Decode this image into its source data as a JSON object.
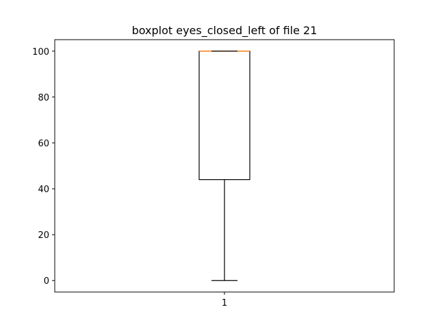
{
  "chart_data": {
    "type": "boxplot",
    "title": "boxplot eyes_closed_left of file 21",
    "xlabel": "",
    "ylabel": "",
    "categories": [
      "1"
    ],
    "ylim": [
      -5,
      105
    ],
    "yticks": [
      0,
      20,
      40,
      60,
      80,
      100
    ],
    "ytick_labels": [
      "0",
      "20",
      "40",
      "60",
      "80",
      "100"
    ],
    "grid": false,
    "boxes": [
      {
        "category": "1",
        "whisker_low": 0,
        "q1": 44,
        "median": 100,
        "q3": 100,
        "whisker_high": 100
      }
    ],
    "colors": {
      "box": "#000000",
      "median": "#ff7f0e",
      "axes": "#000000",
      "background": "#ffffff"
    }
  }
}
